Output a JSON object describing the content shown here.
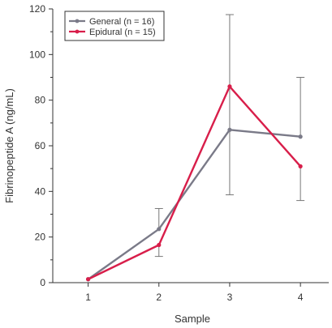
{
  "chart_data": {
    "type": "line",
    "xlabel": "Sample",
    "ylabel": "Fibrinopeptide A (ng/mL)",
    "x": [
      1,
      2,
      3,
      4
    ],
    "xlim": [
      0.5,
      4.4
    ],
    "ylim": [
      0,
      120
    ],
    "yticks": [
      0,
      20,
      40,
      60,
      80,
      100,
      120
    ],
    "xticks": [
      1,
      2,
      3,
      4
    ],
    "legend_position": "top-left",
    "grid": false,
    "series": [
      {
        "name": "General (n = 16)",
        "color": "#7a7a88",
        "values": [
          1.5,
          23.5,
          67,
          64
        ],
        "error_upper": [
          null,
          32.5,
          117.5,
          90
        ],
        "error_lower": [
          null,
          23.5,
          38.5,
          64
        ]
      },
      {
        "name": "Epidural (n = 15)",
        "color": "#d81e4a",
        "values": [
          1.5,
          16.5,
          86,
          51
        ],
        "error_upper": [
          null,
          16.5,
          86,
          51
        ],
        "error_lower": [
          null,
          11.5,
          86,
          36
        ]
      }
    ]
  }
}
